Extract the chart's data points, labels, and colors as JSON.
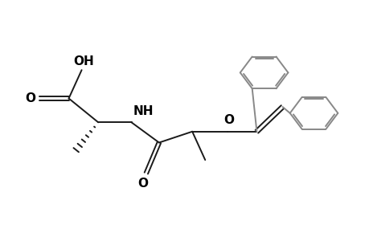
{
  "background": "#ffffff",
  "line_color": "#1a1a1a",
  "ring_color": "#888888",
  "text_color": "#000000",
  "bond_lw": 1.4,
  "font_size": 10,
  "xlim": [
    0.0,
    10.0
  ],
  "ylim": [
    0.5,
    6.2
  ],
  "figsize": [
    4.6,
    3.0
  ],
  "dpi": 100
}
